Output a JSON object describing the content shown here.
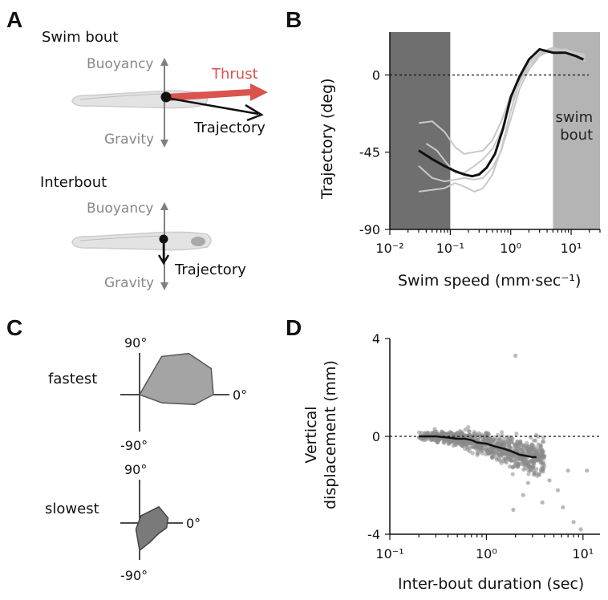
{
  "panels": {
    "a": "A",
    "b": "B",
    "c": "C",
    "d": "D"
  },
  "panel_a": {
    "swim_title": "Swim bout",
    "interbout_title": "Interbout",
    "buoyancy": "Buoyancy",
    "gravity": "Gravity",
    "thrust": "Thrust",
    "trajectory": "Trajectory",
    "thrust_color": "#d9534f"
  },
  "panel_c": {
    "fastest": "fastest",
    "slowest": "slowest",
    "deg_pos": "90°",
    "deg_neg": "-90°",
    "deg_zero": "0°"
  },
  "chart_data": [
    {
      "type": "line",
      "id": "B",
      "xlabel": "Swim speed (mm·sec⁻¹)",
      "ylabel": "Trajectory (deg)",
      "xscale": "log",
      "xlim": [
        0.01,
        30
      ],
      "ylim": [
        -90,
        25
      ],
      "x_ticks": [
        "10⁻²",
        "10⁻¹",
        "10⁰",
        "10¹"
      ],
      "y_ticks": [
        "0",
        "-45",
        "-90"
      ],
      "reference_line_y": 0,
      "shaded_regions": [
        {
          "x": [
            0.01,
            0.1
          ],
          "color": "#6f6f6f"
        },
        {
          "x": [
            5,
            30
          ],
          "color": "#b4b4b4",
          "label": "swim bout"
        }
      ],
      "series": [
        {
          "role": "mean",
          "color": "#111111",
          "x": [
            0.03,
            0.05,
            0.08,
            0.12,
            0.17,
            0.23,
            0.3,
            0.4,
            0.55,
            0.75,
            1.0,
            1.4,
            2.0,
            3.0,
            5.0,
            8.0,
            12.0,
            16.0
          ],
          "y": [
            -44,
            -49,
            -53,
            -56,
            -58,
            -59,
            -58,
            -54,
            -46,
            -31,
            -13,
            -1,
            9,
            15,
            13,
            13,
            11,
            9
          ]
        },
        {
          "role": "individual",
          "color": "#c8c8c8",
          "x": [
            0.03,
            0.05,
            0.08,
            0.12,
            0.17,
            0.25,
            0.35,
            0.5,
            0.7,
            1.0,
            1.4,
            2.0,
            3.0,
            5.0,
            8.0,
            12.0,
            17.0
          ],
          "y": [
            -28,
            -27,
            -33,
            -42,
            -46,
            -45,
            -44,
            -38,
            -27,
            -12,
            -2,
            7,
            13,
            16,
            14,
            13,
            12
          ]
        },
        {
          "role": "individual",
          "color": "#c8c8c8",
          "x": [
            0.03,
            0.05,
            0.08,
            0.12,
            0.17,
            0.25,
            0.35,
            0.5,
            0.7,
            1.0,
            1.4,
            2.0,
            3.0,
            5.0,
            8.0,
            12.0,
            17.0
          ],
          "y": [
            -53,
            -60,
            -62,
            -61,
            -60,
            -61,
            -60,
            -54,
            -44,
            -26,
            -8,
            3,
            11,
            15,
            12,
            11,
            8
          ]
        },
        {
          "role": "individual",
          "color": "#c8c8c8",
          "x": [
            0.03,
            0.05,
            0.08,
            0.12,
            0.17,
            0.25,
            0.35,
            0.5,
            0.7,
            1.0,
            1.4,
            2.0,
            3.0,
            5.0,
            8.0,
            12.0,
            17.0
          ],
          "y": [
            -68,
            -67,
            -66,
            -63,
            -65,
            -68,
            -66,
            -58,
            -43,
            -21,
            -4,
            7,
            13,
            15,
            14,
            12,
            10
          ]
        },
        {
          "role": "individual",
          "color": "#c8c8c8",
          "x": [
            0.04,
            0.06,
            0.09,
            0.12,
            0.17,
            0.25,
            0.35,
            0.5,
            0.7,
            1.0,
            1.4,
            2.0,
            3.0,
            5.0,
            8.0,
            12.0,
            17.0
          ],
          "y": [
            -40,
            -44,
            -52,
            -57,
            -57,
            -53,
            -49,
            -43,
            -33,
            -16,
            -5,
            5,
            12,
            14,
            15,
            13,
            11
          ]
        }
      ]
    },
    {
      "type": "polar",
      "id": "C",
      "note": "trajectory distributions for fastest and slowest bouts",
      "fastest": {
        "angles": [
          90,
          60,
          40,
          20,
          0,
          -10,
          -20,
          -90
        ],
        "radii": [
          0,
          0.55,
          0.8,
          0.95,
          0.92,
          0.7,
          0.3,
          0
        ]
      },
      "slowest": {
        "angles": [
          80,
          40,
          10,
          -10,
          -30,
          -60,
          -90,
          -120
        ],
        "radii": [
          0.1,
          0.35,
          0.4,
          0.38,
          0.3,
          0.3,
          0.38,
          0.1
        ]
      }
    },
    {
      "type": "scatter",
      "id": "D",
      "ylabel_line1": "Vertical",
      "ylabel_line2": "displacement (mm)",
      "xlabel": "Inter-bout duration (sec)",
      "xscale": "log",
      "xlim": [
        0.1,
        15
      ],
      "ylim": [
        -4,
        4
      ],
      "x_ticks": [
        "10⁻¹",
        "10⁰",
        "10¹"
      ],
      "y_ticks": [
        "4",
        "0",
        "-4"
      ],
      "reference_line_y": 0,
      "point_color": "#8a8a8a",
      "mean_line": {
        "x": [
          0.2,
          0.3,
          0.4,
          0.5,
          0.6,
          0.7,
          0.8,
          1.0,
          1.2,
          1.5,
          1.8,
          2.2,
          2.6,
          3.0,
          3.3
        ],
        "y": [
          0.0,
          0.0,
          -0.05,
          -0.1,
          -0.1,
          -0.15,
          -0.25,
          -0.3,
          -0.4,
          -0.5,
          -0.6,
          -0.75,
          -0.8,
          -0.85,
          -0.85
        ]
      },
      "outliers": {
        "x": [
          2.0,
          4.5,
          5.5,
          7.0,
          8.0,
          9.5,
          11.0,
          2.4,
          3.8,
          6.2,
          1.9,
          2.7
        ],
        "y": [
          3.3,
          -1.8,
          -2.2,
          -1.4,
          -3.5,
          -3.8,
          -1.4,
          -2.4,
          -2.7,
          -2.9,
          -3.0,
          -1.9
        ]
      }
    }
  ]
}
